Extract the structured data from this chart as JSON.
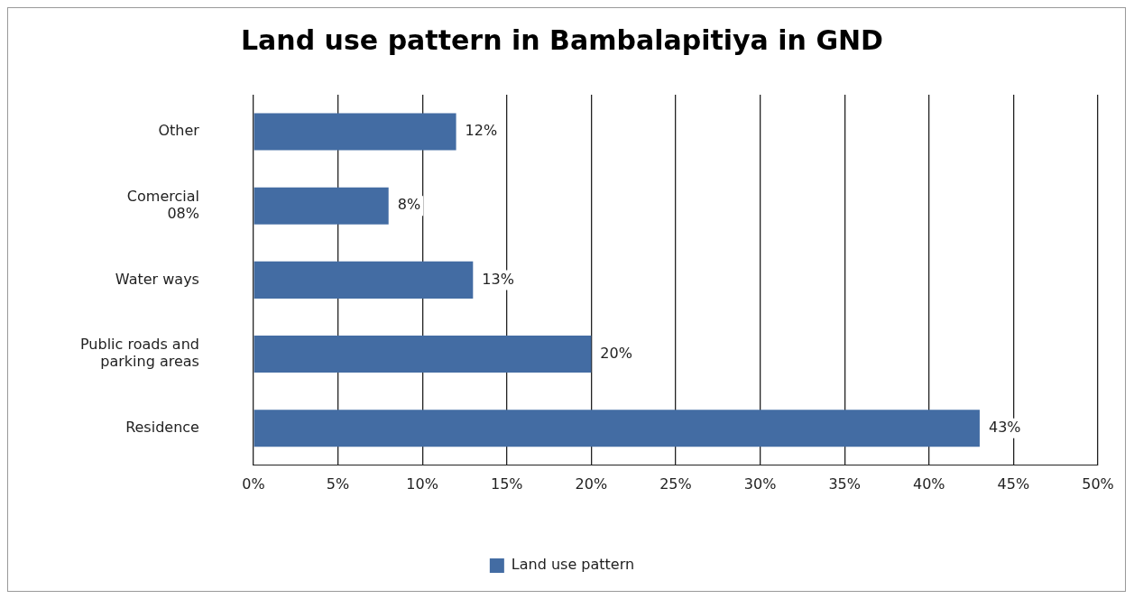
{
  "chart_data": {
    "type": "bar",
    "orientation": "horizontal",
    "title": "Land use pattern in Bambalapitiya in GND",
    "categories": [
      "Other",
      "Comercial\n08%",
      "Water ways",
      "Public roads and\nparking areas",
      "Residence"
    ],
    "series": [
      {
        "name": "Land use pattern",
        "color": "#436ca3",
        "values": [
          12,
          8,
          13,
          20,
          43
        ],
        "value_labels": [
          "12%",
          "8%",
          "13%",
          "20%",
          "43%"
        ]
      }
    ],
    "xlim": [
      0,
      50
    ],
    "xticks": [
      {
        "value": 0,
        "label": "0%"
      },
      {
        "value": 5,
        "label": "5%"
      },
      {
        "value": 10,
        "label": "10%"
      },
      {
        "value": 15,
        "label": "15%"
      },
      {
        "value": 20,
        "label": "20%"
      },
      {
        "value": 25,
        "label": "25%"
      },
      {
        "value": 30,
        "label": "30%"
      },
      {
        "value": 35,
        "label": "35%"
      },
      {
        "value": 40,
        "label": "40%"
      },
      {
        "value": 45,
        "label": "45%"
      },
      {
        "value": 50,
        "label": "50%"
      }
    ],
    "grid": "x",
    "legend": "bottom"
  }
}
